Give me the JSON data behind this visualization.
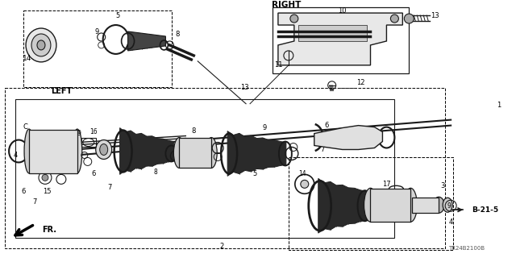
{
  "background_color": "#ffffff",
  "line_color": "#1a1a1a",
  "fig_width": 6.4,
  "fig_height": 3.2,
  "dpi": 100,
  "right_label": "RIGHT",
  "left_label": "LEFT",
  "fr_label": "FR.",
  "ref_label": "B-21-5",
  "diagram_code": "TR24B2100B"
}
